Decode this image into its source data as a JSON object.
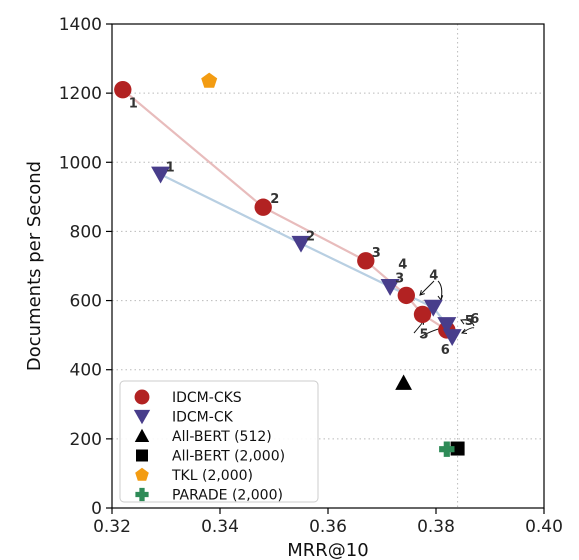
{
  "chart_data": {
    "type": "scatter",
    "xlabel": "MRR@10",
    "ylabel": "Documents per Second",
    "xlim": [
      0.32,
      0.4
    ],
    "ylim": [
      0,
      1400
    ],
    "xticks": [
      0.32,
      0.34,
      0.36,
      0.38,
      0.4
    ],
    "xtick_labels": [
      "0.32",
      "0.34",
      "0.36",
      "0.38",
      "0.40"
    ],
    "yticks": [
      0,
      200,
      400,
      600,
      800,
      1000,
      1200,
      1400
    ],
    "ytick_labels": [
      "0",
      "200",
      "400",
      "600",
      "800",
      "1000",
      "1200",
      "1400"
    ],
    "grid": "dotted",
    "reference_lines": {
      "y": [
        1400,
        1200,
        1000,
        800,
        600,
        400,
        200
      ],
      "x": [
        0.384
      ]
    },
    "legend_position": "lower-left",
    "series": [
      {
        "name": "IDCM-CKS",
        "marker": "circle",
        "color": "#b22222",
        "line_color": "#e8bcbc",
        "points": [
          {
            "x": 0.322,
            "y": 1210,
            "label": "1"
          },
          {
            "x": 0.348,
            "y": 870,
            "label": "2"
          },
          {
            "x": 0.367,
            "y": 715,
            "label": "3"
          },
          {
            "x": 0.3745,
            "y": 615,
            "label": "4"
          },
          {
            "x": 0.3775,
            "y": 560,
            "label": "5"
          },
          {
            "x": 0.382,
            "y": 515,
            "label": "6"
          }
        ]
      },
      {
        "name": "IDCM-CK",
        "marker": "triangle-down",
        "color": "#483d8b",
        "line_color": "#b8cfe2",
        "points": [
          {
            "x": 0.329,
            "y": 965,
            "label": "1"
          },
          {
            "x": 0.355,
            "y": 765,
            "label": "2"
          },
          {
            "x": 0.3715,
            "y": 640,
            "label": "3"
          },
          {
            "x": 0.3795,
            "y": 580,
            "label": "4"
          },
          {
            "x": 0.382,
            "y": 530,
            "label": "5"
          },
          {
            "x": 0.383,
            "y": 495,
            "label": "6"
          }
        ]
      },
      {
        "name": "All-BERT (512)",
        "marker": "triangle-up",
        "color": "#000000",
        "points": [
          {
            "x": 0.374,
            "y": 362
          }
        ]
      },
      {
        "name": "All-BERT (2,000)",
        "marker": "square",
        "color": "#000000",
        "points": [
          {
            "x": 0.384,
            "y": 172
          }
        ]
      },
      {
        "name": "TKL (2,000)",
        "marker": "pentagon",
        "color": "#f39c12",
        "points": [
          {
            "x": 0.338,
            "y": 1235
          }
        ]
      },
      {
        "name": "PARADE (2,000)",
        "marker": "plus",
        "color": "#2e8b57",
        "points": [
          {
            "x": 0.382,
            "y": 170
          }
        ]
      }
    ]
  }
}
